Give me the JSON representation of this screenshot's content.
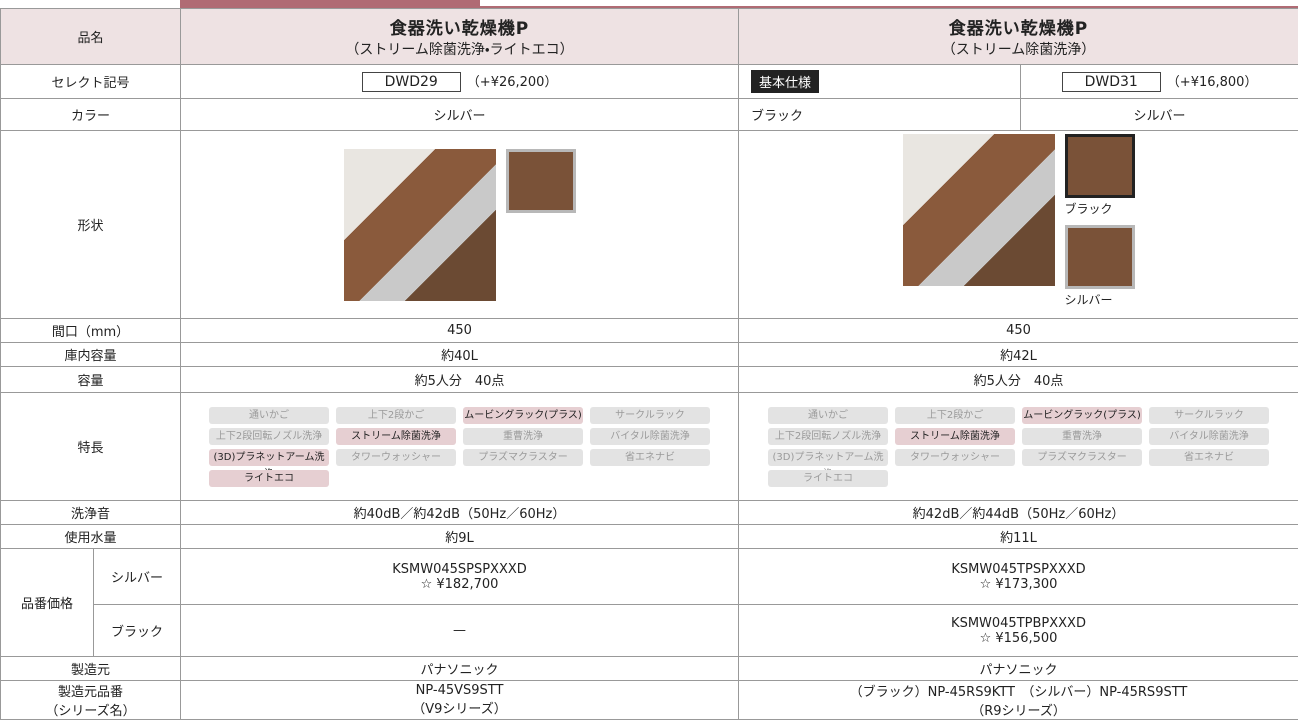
{
  "header": {
    "label": "品名",
    "products": [
      {
        "name": "食器洗い乾燥機P",
        "sub": "（ストリーム除菌洗浄・ライトエコ）"
      },
      {
        "name": "食器洗い乾燥機P",
        "sub": "（ストリーム除菌洗浄）"
      }
    ]
  },
  "select": {
    "label": "セレクト記号",
    "standard": "基本仕様",
    "products": [
      {
        "code": "DWD29",
        "price": "（+¥26,200）"
      },
      {
        "code": "DWD31",
        "price": "（+¥16,800）"
      }
    ]
  },
  "color": {
    "label": "カラー",
    "values": [
      "シルバー",
      "ブラック",
      "シルバー"
    ]
  },
  "shape": {
    "label": "形状",
    "captions": [
      "ブラック",
      "シルバー"
    ]
  },
  "width": {
    "label": "間口（mm）",
    "values": [
      "450",
      "450"
    ]
  },
  "capacity_l": {
    "label": "庫内容量",
    "values": [
      "約40L",
      "約42L"
    ]
  },
  "capacity": {
    "label": "容量",
    "values": [
      "約5人分　40点",
      "約5人分　40点"
    ]
  },
  "features": {
    "label": "特長",
    "products": [
      [
        {
          "name": "通いかご",
          "highlighted": false
        },
        {
          "name": "上下2段かご",
          "highlighted": false
        },
        {
          "name": "ムービングラック(プラス)",
          "highlighted": true
        },
        {
          "name": "サークルラック",
          "highlighted": false
        },
        {
          "name": "上下2段回転ノズル洗浄",
          "highlighted": false
        },
        {
          "name": "ストリーム除菌洗浄",
          "highlighted": true
        },
        {
          "name": "重曹洗浄",
          "highlighted": false
        },
        {
          "name": "バイタル除菌洗浄",
          "highlighted": false
        },
        {
          "name": "(3D)プラネットアーム洗浄",
          "highlighted": true
        },
        {
          "name": "タワーウォッシャー",
          "highlighted": false
        },
        {
          "name": "プラズマクラスター",
          "highlighted": false
        },
        {
          "name": "省エネナビ",
          "highlighted": false
        },
        {
          "name": "ライトエコ",
          "highlighted": true
        }
      ],
      [
        {
          "name": "通いかご",
          "highlighted": false
        },
        {
          "name": "上下2段かご",
          "highlighted": false
        },
        {
          "name": "ムービングラック(プラス)",
          "highlighted": true
        },
        {
          "name": "サークルラック",
          "highlighted": false
        },
        {
          "name": "上下2段回転ノズル洗浄",
          "highlighted": false
        },
        {
          "name": "ストリーム除菌洗浄",
          "highlighted": true
        },
        {
          "name": "重曹洗浄",
          "highlighted": false
        },
        {
          "name": "バイタル除菌洗浄",
          "highlighted": false
        },
        {
          "name": "(3D)プラネットアーム洗浄",
          "highlighted": false
        },
        {
          "name": "タワーウォッシャー",
          "highlighted": false
        },
        {
          "name": "プラズマクラスター",
          "highlighted": false
        },
        {
          "name": "省エネナビ",
          "highlighted": false
        },
        {
          "name": "ライトエコ",
          "highlighted": false
        }
      ]
    ]
  },
  "noise": {
    "label": "洗浄音",
    "values": [
      "約40dB／約42dB（50Hz／60Hz）",
      "約42dB／約44dB（50Hz／60Hz）"
    ]
  },
  "water": {
    "label": "使用水量",
    "values": [
      "約9L",
      "約11L"
    ]
  },
  "price": {
    "label": "品番価格",
    "rows": [
      {
        "label": "シルバー",
        "values": [
          {
            "model": "KSMW045SPSPXXXD",
            "price": "☆ ¥182,700"
          },
          {
            "model": "KSMW045TPSPXXXD",
            "price": "☆ ¥173,300"
          }
        ]
      },
      {
        "label": "ブラック",
        "values": [
          "—",
          {
            "model": "KSMW045TPBPXXXD",
            "price": "☆ ¥156,500"
          }
        ]
      }
    ]
  },
  "maker": {
    "label": "製造元",
    "values": [
      "パナソニック",
      "パナソニック"
    ]
  },
  "maker_model": {
    "label": [
      "製造元品番",
      "（シリーズ名）"
    ],
    "values": [
      {
        "model": "NP-45VS9STT",
        "series": "（V9シリーズ）"
      },
      {
        "model": "（ブラック）NP-45RS9KTT　（シルバー）NP-45RS9STT",
        "series": "（R9シリーズ）"
      }
    ]
  }
}
